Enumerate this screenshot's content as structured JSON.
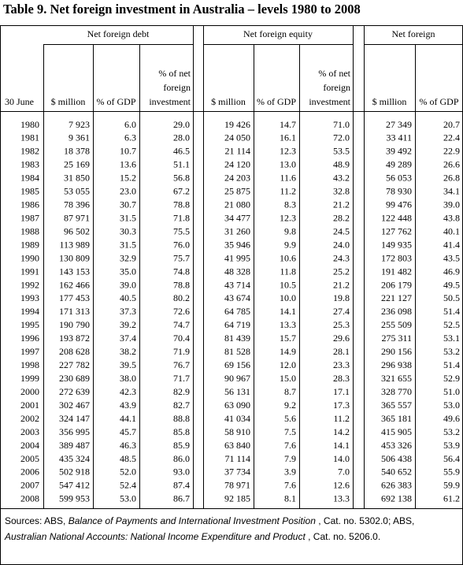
{
  "title": "Table 9. Net foreign investment in Australia – levels 1980 to 2008",
  "groups": [
    "Net foreign debt",
    "Net foreign equity",
    "Net foreign"
  ],
  "column_headers": [
    [
      "30 June"
    ],
    [
      "$ million"
    ],
    [
      "% of GDP"
    ],
    [
      "% of net",
      "foreign",
      "investment"
    ],
    [
      "$ million"
    ],
    [
      "% of GDP"
    ],
    [
      "% of net",
      "foreign",
      "investment"
    ],
    [
      "$ million"
    ],
    [
      "% of GDP"
    ]
  ],
  "rows": [
    [
      "1980",
      "7 923",
      "6.0",
      "29.0",
      "19 426",
      "14.7",
      "71.0",
      "27 349",
      "20.7"
    ],
    [
      "1981",
      "9 361",
      "6.3",
      "28.0",
      "24 050",
      "16.1",
      "72.0",
      "33 411",
      "22.4"
    ],
    [
      "1982",
      "18 378",
      "10.7",
      "46.5",
      "21 114",
      "12.3",
      "53.5",
      "39 492",
      "22.9"
    ],
    [
      "1983",
      "25 169",
      "13.6",
      "51.1",
      "24 120",
      "13.0",
      "48.9",
      "49 289",
      "26.6"
    ],
    [
      "1984",
      "31 850",
      "15.2",
      "56.8",
      "24 203",
      "11.6",
      "43.2",
      "56 053",
      "26.8"
    ],
    [
      "1985",
      "53 055",
      "23.0",
      "67.2",
      "25 875",
      "11.2",
      "32.8",
      "78 930",
      "34.1"
    ],
    [
      "1986",
      "78 396",
      "30.7",
      "78.8",
      "21 080",
      "8.3",
      "21.2",
      "99 476",
      "39.0"
    ],
    [
      "1987",
      "87 971",
      "31.5",
      "71.8",
      "34 477",
      "12.3",
      "28.2",
      "122 448",
      "43.8"
    ],
    [
      "1988",
      "96 502",
      "30.3",
      "75.5",
      "31 260",
      "9.8",
      "24.5",
      "127 762",
      "40.1"
    ],
    [
      "1989",
      "113 989",
      "31.5",
      "76.0",
      "35 946",
      "9.9",
      "24.0",
      "149 935",
      "41.4"
    ],
    [
      "1990",
      "130 809",
      "32.9",
      "75.7",
      "41 995",
      "10.6",
      "24.3",
      "172 803",
      "43.5"
    ],
    [
      "1991",
      "143 153",
      "35.0",
      "74.8",
      "48 328",
      "11.8",
      "25.2",
      "191 482",
      "46.9"
    ],
    [
      "1992",
      "162 466",
      "39.0",
      "78.8",
      "43 714",
      "10.5",
      "21.2",
      "206 179",
      "49.5"
    ],
    [
      "1993",
      "177 453",
      "40.5",
      "80.2",
      "43 674",
      "10.0",
      "19.8",
      "221 127",
      "50.5"
    ],
    [
      "1994",
      "171 313",
      "37.3",
      "72.6",
      "64 785",
      "14.1",
      "27.4",
      "236 098",
      "51.4"
    ],
    [
      "1995",
      "190 790",
      "39.2",
      "74.7",
      "64 719",
      "13.3",
      "25.3",
      "255 509",
      "52.5"
    ],
    [
      "1996",
      "193 872",
      "37.4",
      "70.4",
      "81 439",
      "15.7",
      "29.6",
      "275 311",
      "53.1"
    ],
    [
      "1997",
      "208 628",
      "38.2",
      "71.9",
      "81 528",
      "14.9",
      "28.1",
      "290 156",
      "53.2"
    ],
    [
      "1998",
      "227 782",
      "39.5",
      "76.7",
      "69 156",
      "12.0",
      "23.3",
      "296 938",
      "51.4"
    ],
    [
      "1999",
      "230 689",
      "38.0",
      "71.7",
      "90 967",
      "15.0",
      "28.3",
      "321 655",
      "52.9"
    ],
    [
      "2000",
      "272 639",
      "42.3",
      "82.9",
      "56 131",
      "8.7",
      "17.1",
      "328 770",
      "51.0"
    ],
    [
      "2001",
      "302 467",
      "43.9",
      "82.7",
      "63 090",
      "9.2",
      "17.3",
      "365 557",
      "53.0"
    ],
    [
      "2002",
      "324 147",
      "44.1",
      "88.8",
      "41 034",
      "5.6",
      "11.2",
      "365 181",
      "49.6"
    ],
    [
      "2003",
      "356 995",
      "45.7",
      "85.8",
      "58 910",
      "7.5",
      "14.2",
      "415 905",
      "53.2"
    ],
    [
      "2004",
      "389 487",
      "46.3",
      "85.9",
      "63 840",
      "7.6",
      "14.1",
      "453 326",
      "53.9"
    ],
    [
      "2005",
      "435 324",
      "48.5",
      "86.0",
      "71 114",
      "7.9",
      "14.0",
      "506 438",
      "56.4"
    ],
    [
      "2006",
      "502 918",
      "52.0",
      "93.0",
      "37 734",
      "3.9",
      "7.0",
      "540 652",
      "55.9"
    ],
    [
      "2007",
      "547 412",
      "52.4",
      "87.4",
      "78 971",
      "7.6",
      "12.6",
      "626 383",
      "59.9"
    ],
    [
      "2008",
      "599 953",
      "53.0",
      "86.7",
      "92 185",
      "8.1",
      "13.3",
      "692 138",
      "61.2"
    ]
  ],
  "footnote": [
    "Sources: ABS, ",
    "Balance of Payments and International Investment Position",
    " , Cat. no. 5302.0; ABS,",
    "Australian National Accounts: National Income Expenditure and Product",
    " , Cat. no. 5206.0."
  ]
}
